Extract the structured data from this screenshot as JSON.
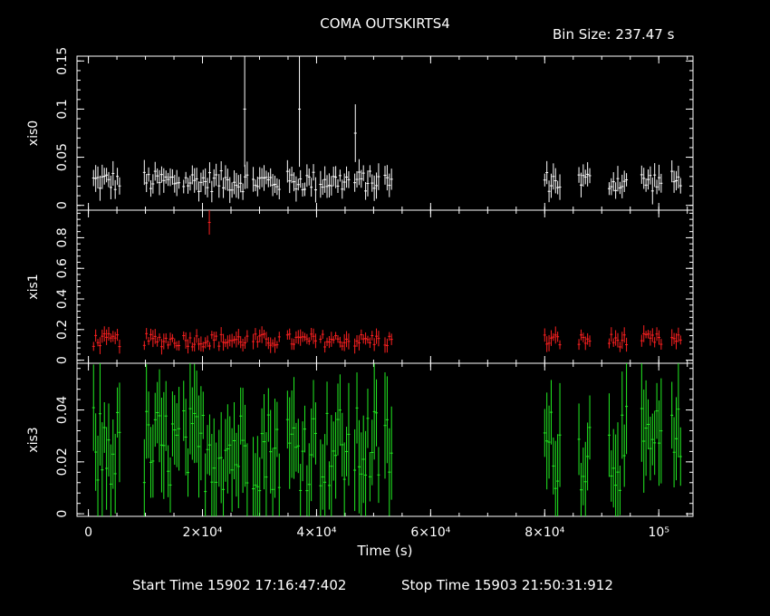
{
  "header": {
    "title": "COMA OUTSKIRTS4",
    "bin_size": "Bin Size: 237.47 s"
  },
  "footer": {
    "start_time": "Start Time 15902 17:16:47:402",
    "stop_time": "Stop Time 15903 21:50:31:912"
  },
  "chart_data": {
    "type": "scatter",
    "xlabel": "Time (s)",
    "xlim": [
      -2000,
      106000
    ],
    "x_ticks": [
      {
        "value": 0,
        "label": "0"
      },
      {
        "value": 20000,
        "label": "2×10⁴"
      },
      {
        "value": 40000,
        "label": "4×10⁴"
      },
      {
        "value": 60000,
        "label": "6×10⁴"
      },
      {
        "value": 80000,
        "label": "8×10⁴"
      },
      {
        "value": 100000,
        "label": "10⁵"
      }
    ],
    "observation_segments": [
      [
        900,
        5800
      ],
      [
        9800,
        16200
      ],
      [
        16700,
        22600
      ],
      [
        22900,
        28200
      ],
      [
        28900,
        33600
      ],
      [
        34900,
        40100
      ],
      [
        40700,
        45800
      ],
      [
        46700,
        51200
      ],
      [
        52000,
        53400
      ],
      [
        80000,
        82800
      ],
      [
        86000,
        88200
      ],
      [
        91300,
        94500
      ],
      [
        97000,
        100500
      ],
      [
        102300,
        104000
      ]
    ],
    "panels": [
      {
        "ylabel": "xis0",
        "color": "#ffffff",
        "ylim": [
          -0.005,
          0.155
        ],
        "yticks": [
          {
            "value": 0,
            "label": "0"
          },
          {
            "value": 0.05,
            "label": "0.05"
          },
          {
            "value": 0.1,
            "label": "0.1"
          },
          {
            "value": 0.15,
            "label": "0.15"
          }
        ],
        "typical_rate": 0.025,
        "typical_err": 0.01,
        "spikes": [
          {
            "x": 27400,
            "y": 0.1,
            "err": 0.06
          },
          {
            "x": 37000,
            "y": 0.1,
            "err": 0.06
          },
          {
            "x": 46800,
            "y": 0.075,
            "err": 0.03
          }
        ]
      },
      {
        "ylabel": "xis1",
        "color": "#ff2020",
        "ylim": [
          -0.02,
          0.98
        ],
        "yticks": [
          {
            "value": 0,
            "label": "0"
          },
          {
            "value": 0.2,
            "label": "0.2"
          },
          {
            "value": 0.4,
            "label": "0.4"
          },
          {
            "value": 0.6,
            "label": "0.6"
          },
          {
            "value": 0.8,
            "label": "0.8"
          }
        ],
        "typical_rate": 0.13,
        "typical_err": 0.04,
        "spikes": [
          {
            "x": 21200,
            "y": 0.9,
            "err": 0.08
          }
        ]
      },
      {
        "ylabel": "xis3",
        "color": "#22ee22",
        "ylim": [
          -0.001,
          0.058
        ],
        "yticks": [
          {
            "value": 0,
            "label": "0"
          },
          {
            "value": 0.02,
            "label": "0.02"
          },
          {
            "value": 0.04,
            "label": "0.04"
          }
        ],
        "typical_rate": 0.025,
        "typical_err": 0.015,
        "spikes": []
      }
    ]
  }
}
